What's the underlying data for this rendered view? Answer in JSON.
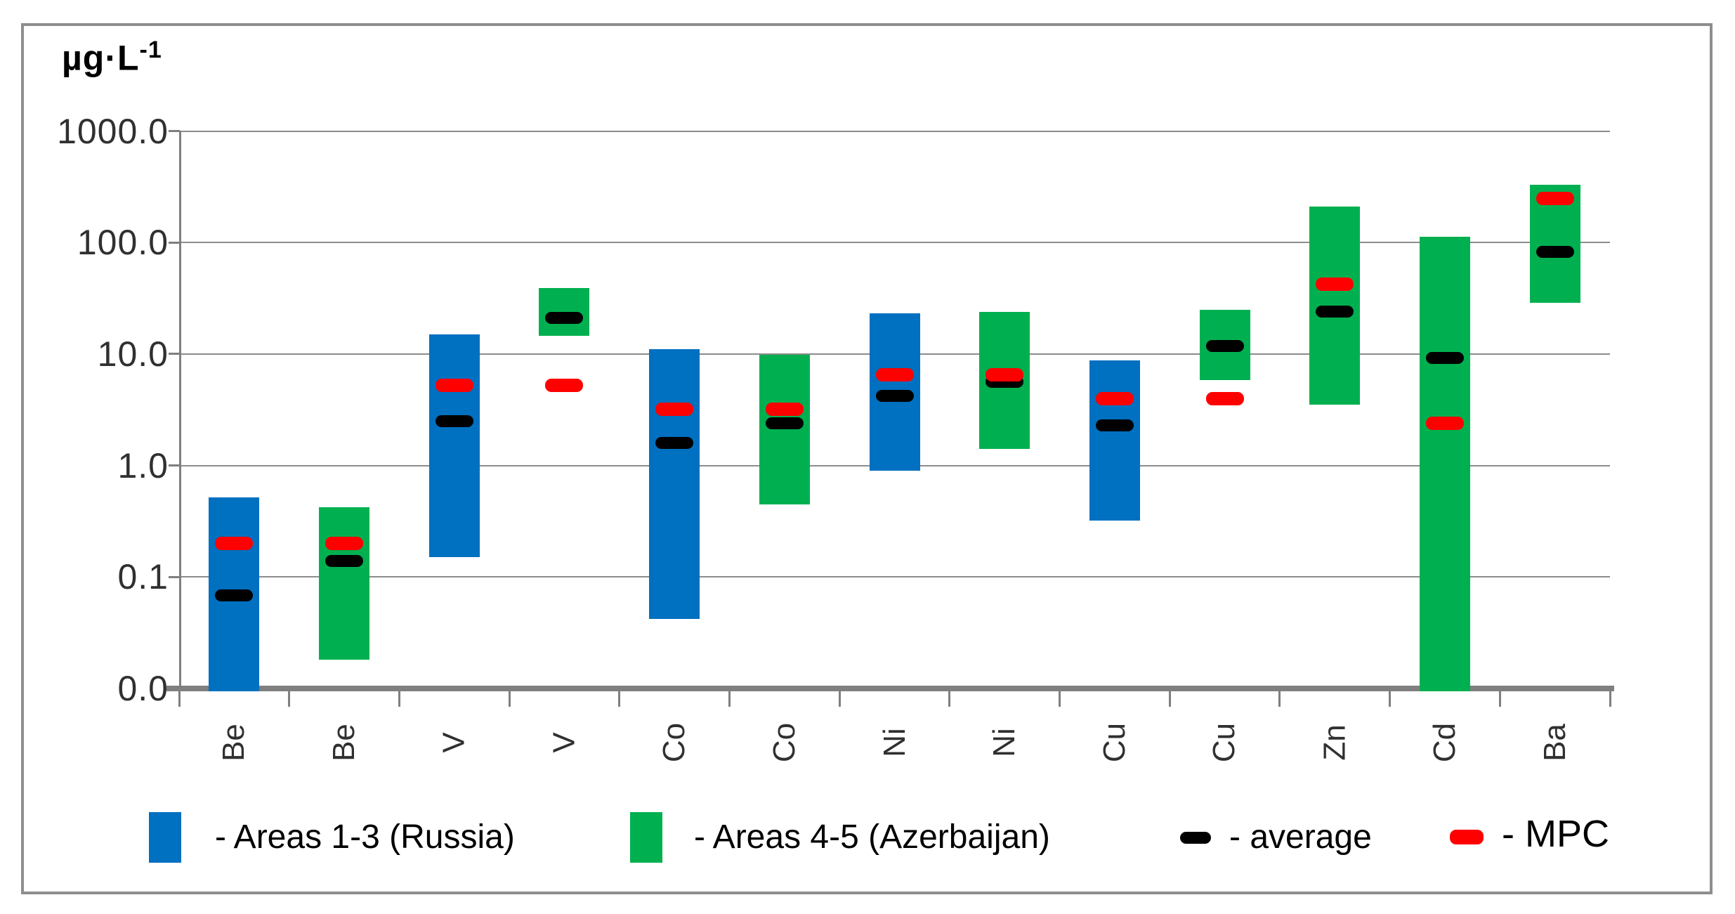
{
  "chart_data": {
    "type": "bar",
    "subtype": "floating-range-bars",
    "title": "",
    "ylabel": "µg·L⁻¹",
    "ylabel_unit": {
      "base": "µg·L",
      "sup": "-1"
    },
    "yscale": "log",
    "ylim": [
      0.01,
      1000
    ],
    "grid": "horizontal",
    "legend_position": "bottom",
    "y_ticks": [
      {
        "label": "1000.0",
        "value": 1000
      },
      {
        "label": "100.0",
        "value": 100
      },
      {
        "label": "10.0",
        "value": 10
      },
      {
        "label": "1.0",
        "value": 1
      },
      {
        "label": "0.1",
        "value": 0.1
      },
      {
        "label": "0.0",
        "value": 0.01
      }
    ],
    "categories": [
      "Be",
      "Be",
      "V",
      "V",
      "Co",
      "Co",
      "Ni",
      "Ni",
      "Cu",
      "Cu",
      "Zn",
      "Cd",
      "Ba"
    ],
    "legend": {
      "items": [
        {
          "key": "russia",
          "swatch": "blue-rect",
          "label": "- Areas 1-3 (Russia)"
        },
        {
          "key": "azerbaijan",
          "swatch": "green-rect",
          "label": "- Areas 4-5 (Azerbaijan)"
        },
        {
          "key": "average",
          "swatch": "black-dash",
          "label": "- average"
        },
        {
          "key": "mpc",
          "swatch": "red-dash",
          "label": "- MPC"
        }
      ]
    },
    "bars": [
      {
        "element": "Be",
        "series_key": "russia",
        "area": "Areas 1-3 (Russia)",
        "min": 0.01,
        "max": 0.52,
        "average": 0.068,
        "mpc": 0.2
      },
      {
        "element": "Be",
        "series_key": "azerbaijan",
        "area": "Areas 4-5 (Azerbaijan)",
        "min": 0.018,
        "max": 0.42,
        "average": 0.14,
        "mpc": 0.2
      },
      {
        "element": "V",
        "series_key": "russia",
        "area": "Areas 1-3 (Russia)",
        "min": 0.15,
        "max": 15,
        "average": 2.5,
        "mpc": 5.2
      },
      {
        "element": "V",
        "series_key": "azerbaijan",
        "area": "Areas 4-5 (Azerbaijan)",
        "min": 14.5,
        "max": 39,
        "average": 21,
        "mpc": 5.2
      },
      {
        "element": "Co",
        "series_key": "russia",
        "area": "Areas 1-3 (Russia)",
        "min": 0.042,
        "max": 11,
        "average": 1.6,
        "mpc": 3.2
      },
      {
        "element": "Co",
        "series_key": "azerbaijan",
        "area": "Areas 4-5 (Azerbaijan)",
        "min": 0.45,
        "max": 9.9,
        "average": 2.4,
        "mpc": 3.2
      },
      {
        "element": "Ni",
        "series_key": "russia",
        "area": "Areas 1-3 (Russia)",
        "min": 0.9,
        "max": 23,
        "average": 4.2,
        "mpc": 6.5
      },
      {
        "element": "Ni",
        "series_key": "azerbaijan",
        "area": "Areas 4-5 (Azerbaijan)",
        "min": 1.4,
        "max": 24,
        "average": 5.6,
        "mpc": 6.5
      },
      {
        "element": "Cu",
        "series_key": "russia",
        "area": "Areas 1-3 (Russia)",
        "min": 0.32,
        "max": 8.8,
        "average": 2.3,
        "mpc": 4.0
      },
      {
        "element": "Cu",
        "series_key": "azerbaijan",
        "area": "Areas 4-5 (Azerbaijan)",
        "min": 5.8,
        "max": 25,
        "average": 11.8,
        "mpc": 4.0
      },
      {
        "element": "Zn",
        "series_key": "azerbaijan",
        "area": "Areas 4-5 (Azerbaijan)",
        "min": 3.5,
        "max": 210,
        "average": 24,
        "mpc": 42
      },
      {
        "element": "Cd",
        "series_key": "azerbaijan",
        "area": "Areas 4-5 (Azerbaijan)",
        "min": 0.01,
        "max": 112,
        "average": 9.2,
        "mpc": 2.4
      },
      {
        "element": "Ba",
        "series_key": "azerbaijan",
        "area": "Areas 4-5 (Azerbaijan)",
        "min": 29,
        "max": 330,
        "average": 83,
        "mpc": 250
      }
    ]
  },
  "colors": {
    "russia": "#0070C0",
    "azerbaijan": "#00B050",
    "average": "#000000",
    "mpc": "#FF0000",
    "gridline": "#8C8C8C",
    "axis": "#7F7F7F",
    "border": "#8E8E8E",
    "tick_text": "#303030",
    "title_text": "#000000"
  }
}
